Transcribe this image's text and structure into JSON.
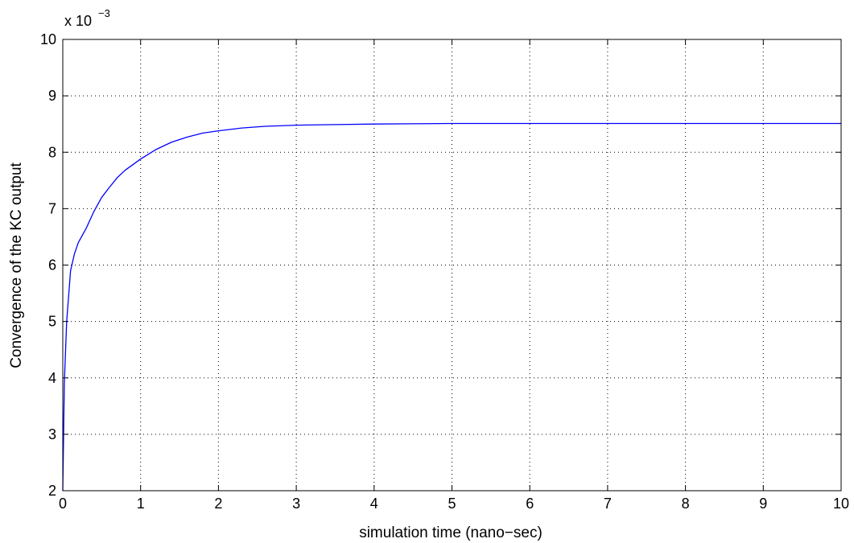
{
  "chart_data": {
    "type": "line",
    "xlabel": "simulation time (nano−sec)",
    "ylabel": "Convergence of the KC output",
    "xlim": [
      0,
      10
    ],
    "ylim": [
      2,
      10
    ],
    "y_scale_multiplier": "x 10",
    "y_scale_exponent": "−3",
    "grid": true,
    "line_color": "#0000ff",
    "x_ticks": [
      0,
      1,
      2,
      3,
      4,
      5,
      6,
      7,
      8,
      9,
      10
    ],
    "y_ticks": [
      2,
      3,
      4,
      5,
      6,
      7,
      8,
      9,
      10
    ],
    "series": [
      {
        "x": [
          0,
          0.02,
          0.05,
          0.1,
          0.15,
          0.2,
          0.3,
          0.4,
          0.5,
          0.6,
          0.7,
          0.8,
          0.9,
          1.0,
          1.2,
          1.4,
          1.6,
          1.8,
          2.0,
          2.3,
          2.6,
          3.0,
          3.5,
          4.0,
          5.0,
          6.0,
          7.0,
          8.0,
          9.0,
          10.0
        ],
        "y": [
          2.0,
          3.9,
          5.0,
          5.9,
          6.2,
          6.4,
          6.65,
          6.95,
          7.2,
          7.38,
          7.55,
          7.68,
          7.78,
          7.88,
          8.05,
          8.18,
          8.27,
          8.34,
          8.38,
          8.43,
          8.46,
          8.48,
          8.49,
          8.5,
          8.51,
          8.51,
          8.51,
          8.51,
          8.51,
          8.51
        ]
      }
    ]
  }
}
